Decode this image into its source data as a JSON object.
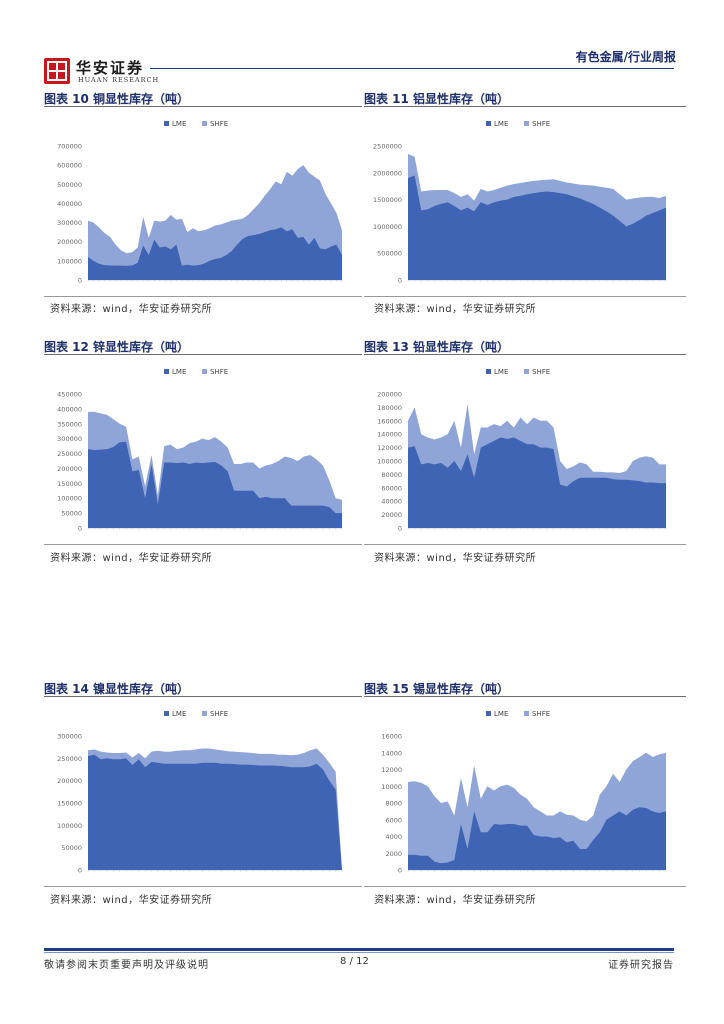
{
  "header": {
    "logo_cn": "华安证券",
    "logo_en": "HUAAN RESEARCH",
    "section": "有色金属/行业周报"
  },
  "colors": {
    "lme": "#3f64b3",
    "shfe": "#8fa5d8",
    "brand": "#1f2f6b",
    "logo_red": "#c8161d"
  },
  "figures": [
    {
      "id": "f10",
      "title": "图表 10 铜显性库存（吨）",
      "source": "资料来源：wind，华安证券研究所",
      "chart_data": {
        "type": "area",
        "legend": [
          "LME",
          "SHFE"
        ],
        "yticks": [
          "0",
          "100000",
          "200000",
          "300000",
          "400000",
          "500000",
          "600000",
          "700000"
        ],
        "ymax": 700000,
        "series": [
          {
            "name": "LME",
            "values": [
              120000,
              100000,
              85000,
              78000,
              76000,
              75000,
              75000,
              74000,
              76000,
              90000,
              180000,
              130000,
              210000,
              170000,
              175000,
              160000,
              185000,
              75000,
              80000,
              75000,
              78000,
              85000,
              100000,
              110000,
              115000,
              130000,
              150000,
              185000,
              215000,
              230000,
              235000,
              240000,
              250000,
              260000,
              265000,
              275000,
              255000,
              265000,
              220000,
              225000,
              185000,
              220000,
              165000,
              160000,
              175000,
              185000,
              130000
            ]
          },
          {
            "name": "SHFE",
            "values": [
              310000,
              300000,
              275000,
              245000,
              225000,
              185000,
              155000,
              140000,
              145000,
              170000,
              330000,
              220000,
              310000,
              305000,
              310000,
              340000,
              315000,
              320000,
              250000,
              270000,
              255000,
              260000,
              270000,
              285000,
              290000,
              300000,
              310000,
              315000,
              320000,
              340000,
              370000,
              400000,
              440000,
              475000,
              515000,
              500000,
              565000,
              545000,
              580000,
              600000,
              560000,
              540000,
              520000,
              450000,
              400000,
              350000,
              260000
            ]
          }
        ]
      }
    },
    {
      "id": "f11",
      "title": "图表 11 铝显性库存（吨）",
      "source": "资料来源：wind，华安证券研究所",
      "chart_data": {
        "type": "area",
        "legend": [
          "LME",
          "SHFE"
        ],
        "yticks": [
          "0",
          "500000",
          "1000000",
          "1500000",
          "2000000",
          "2500000"
        ],
        "ymax": 2500000,
        "series": [
          {
            "name": "LME",
            "values": [
              1900000,
              1950000,
              1300000,
              1320000,
              1380000,
              1420000,
              1450000,
              1380000,
              1300000,
              1350000,
              1280000,
              1450000,
              1400000,
              1450000,
              1480000,
              1500000,
              1550000,
              1570000,
              1600000,
              1620000,
              1640000,
              1650000,
              1640000,
              1620000,
              1600000,
              1560000,
              1520000,
              1470000,
              1420000,
              1350000,
              1280000,
              1200000,
              1100000,
              1000000,
              1050000,
              1120000,
              1200000,
              1250000,
              1300000,
              1350000
            ]
          },
          {
            "name": "SHFE",
            "values": [
              2350000,
              2300000,
              1650000,
              1670000,
              1680000,
              1680000,
              1680000,
              1620000,
              1550000,
              1600000,
              1480000,
              1700000,
              1650000,
              1680000,
              1720000,
              1760000,
              1790000,
              1810000,
              1830000,
              1850000,
              1860000,
              1870000,
              1880000,
              1850000,
              1820000,
              1800000,
              1780000,
              1770000,
              1760000,
              1740000,
              1720000,
              1700000,
              1600000,
              1500000,
              1520000,
              1540000,
              1550000,
              1550000,
              1530000,
              1570000
            ]
          }
        ]
      }
    },
    {
      "id": "f12",
      "title": "图表 12 锌显性库存（吨）",
      "source": "资料来源：wind，华安证券研究所",
      "chart_data": {
        "type": "area",
        "legend": [
          "LME",
          "SHFE"
        ],
        "yticks": [
          "0",
          "50000",
          "100000",
          "150000",
          "200000",
          "250000",
          "300000",
          "350000",
          "400000",
          "450000"
        ],
        "ymax": 450000,
        "series": [
          {
            "name": "LME",
            "values": [
              265000,
              262000,
              263000,
              265000,
              272000,
              288000,
              290000,
              190000,
              195000,
              100000,
              215000,
              80000,
              220000,
              220000,
              218000,
              220000,
              215000,
              220000,
              218000,
              220000,
              222000,
              210000,
              190000,
              125000,
              125000,
              125000,
              125000,
              100000,
              105000,
              100000,
              100000,
              100000,
              75000,
              75000,
              75000,
              75000,
              75000,
              75000,
              70000,
              50000,
              50000
            ]
          },
          {
            "name": "SHFE",
            "values": [
              390000,
              390000,
              385000,
              380000,
              365000,
              350000,
              340000,
              230000,
              240000,
              140000,
              245000,
              110000,
              275000,
              280000,
              265000,
              270000,
              285000,
              290000,
              300000,
              295000,
              305000,
              290000,
              270000,
              215000,
              215000,
              220000,
              220000,
              200000,
              210000,
              215000,
              225000,
              240000,
              235000,
              225000,
              240000,
              245000,
              230000,
              210000,
              160000,
              100000,
              95000
            ]
          }
        ]
      }
    },
    {
      "id": "f13",
      "title": "图表 13 铅显性库存（吨）",
      "source": "资料来源：wind，华安证券研究所",
      "chart_data": {
        "type": "area",
        "legend": [
          "LME",
          "SHFE"
        ],
        "yticks": [
          "0",
          "20000",
          "40000",
          "60000",
          "80000",
          "100000",
          "120000",
          "140000",
          "160000",
          "180000",
          "200000"
        ],
        "ymax": 200000,
        "series": [
          {
            "name": "LME",
            "values": [
              120000,
              122000,
              95000,
              97000,
              95000,
              97000,
              90000,
              100000,
              85000,
              110000,
              75000,
              120000,
              125000,
              130000,
              135000,
              133000,
              135000,
              130000,
              125000,
              125000,
              120000,
              120000,
              118000,
              65000,
              62000,
              70000,
              75000,
              75000,
              75000,
              75000,
              75000,
              73000,
              72000,
              72000,
              71000,
              70000,
              68000,
              68000,
              67000,
              67000
            ]
          },
          {
            "name": "SHFE",
            "values": [
              160000,
              180000,
              140000,
              135000,
              132000,
              135000,
              140000,
              160000,
              120000,
              185000,
              110000,
              150000,
              150000,
              155000,
              152000,
              160000,
              150000,
              165000,
              155000,
              165000,
              160000,
              160000,
              150000,
              100000,
              88000,
              92000,
              98000,
              95000,
              84000,
              84000,
              83000,
              83000,
              82000,
              85000,
              100000,
              105000,
              107000,
              105000,
              95000,
              95000
            ]
          }
        ]
      }
    },
    {
      "id": "f14",
      "title": "图表 14 镍显性库存（吨）",
      "source": "资料来源：wind，华安证券研究所",
      "chart_data": {
        "type": "area",
        "legend": [
          "LME",
          "SHFE"
        ],
        "yticks": [
          "0",
          "50000",
          "100000",
          "150000",
          "200000",
          "250000",
          "300000"
        ],
        "ymax": 300000,
        "series": [
          {
            "name": "LME",
            "values": [
              255000,
              258000,
              248000,
              250000,
              248000,
              248000,
              250000,
              235000,
              248000,
              230000,
              242000,
              240000,
              238000,
              238000,
              238000,
              238000,
              238000,
              238000,
              240000,
              240000,
              240000,
              238000,
              238000,
              237000,
              236000,
              236000,
              235000,
              234000,
              234000,
              234000,
              233000,
              232000,
              230000,
              230000,
              230000,
              232000,
              238000,
              225000,
              200000,
              180000,
              0
            ]
          },
          {
            "name": "SHFE",
            "values": [
              268000,
              270000,
              265000,
              263000,
              262000,
              262000,
              263000,
              252000,
              262000,
              250000,
              265000,
              267000,
              265000,
              265000,
              267000,
              268000,
              268000,
              270000,
              272000,
              272000,
              270000,
              268000,
              266000,
              265000,
              264000,
              263000,
              262000,
              260000,
              260000,
              260000,
              258000,
              258000,
              257000,
              258000,
              262000,
              268000,
              272000,
              258000,
              240000,
              220000,
              0
            ]
          }
        ]
      }
    },
    {
      "id": "f15",
      "title": "图表 15 锡显性库存（吨）",
      "source": "资料来源：wind，华安证券研究所",
      "chart_data": {
        "type": "area",
        "legend": [
          "LME",
          "SHFE"
        ],
        "yticks": [
          "0",
          "2000",
          "4000",
          "6000",
          "8000",
          "10000",
          "12000",
          "14000",
          "16000"
        ],
        "ymax": 16000,
        "series": [
          {
            "name": "LME",
            "values": [
              1800,
              1800,
              1700,
              1700,
              1000,
              800,
              900,
              1200,
              5500,
              2500,
              7000,
              4500,
              4500,
              5500,
              5400,
              5500,
              5500,
              5300,
              5300,
              4200,
              4000,
              4000,
              3800,
              3900,
              3300,
              3500,
              2500,
              2500,
              3600,
              4500,
              6000,
              6500,
              7000,
              6500,
              7200,
              7500,
              7400,
              7000,
              6800,
              7000
            ]
          },
          {
            "name": "SHFE",
            "values": [
              10500,
              10600,
              10400,
              10000,
              8800,
              8000,
              8200,
              6500,
              11000,
              7500,
              12500,
              8500,
              10000,
              9500,
              10000,
              10200,
              9800,
              9000,
              8500,
              7500,
              7000,
              6500,
              6500,
              7000,
              6600,
              6500,
              6000,
              5800,
              6500,
              9000,
              10000,
              11500,
              10500,
              12000,
              13000,
              13500,
              14000,
              13500,
              13800,
              14000
            ]
          }
        ]
      }
    }
  ],
  "footer": {
    "disclaimer": "敬请参阅末页重要声明及评级说明",
    "page": "8 / 12",
    "report_type": "证券研究报告"
  }
}
